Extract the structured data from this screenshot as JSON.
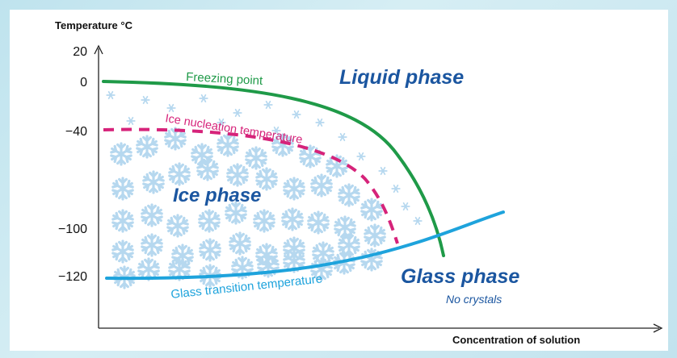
{
  "y_axis": {
    "title": "Temperature °C",
    "ticks": [
      {
        "value": 20,
        "label": "20"
      },
      {
        "value": 0,
        "label": "0"
      },
      {
        "value": -40,
        "label": "−40"
      },
      {
        "value": -100,
        "label": "−100"
      },
      {
        "value": -120,
        "label": "−120"
      }
    ]
  },
  "x_axis": {
    "title": "Concentration of solution"
  },
  "regions": {
    "liquid": "Liquid phase",
    "ice": "Ice phase",
    "glass": "Glass phase",
    "glass_sub": "No crystals"
  },
  "curves": {
    "freezing": "Freezing point",
    "nucleation": "Ice nucleation temperature",
    "glass_transition": "Glass transition temperature"
  },
  "colors": {
    "freezing": "#1f9a48",
    "nucleation": "#d6237a",
    "glass_transition": "#1ea3dc",
    "phase_label": "#1b56a0",
    "snowflake": "#b6d8ef",
    "frame": "#bfe3ee"
  },
  "icons": {
    "snowflake": "snowflake-icon"
  }
}
